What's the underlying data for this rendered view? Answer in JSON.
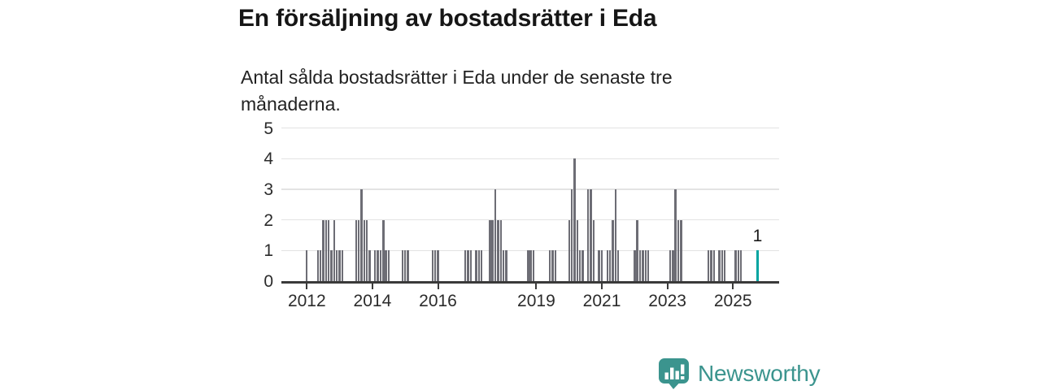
{
  "header": {
    "title": "En försäljning av bostadsrätter i Eda",
    "subtitle": "Antal sålda bostadsrätter i Eda under de senaste tre månaderna."
  },
  "chart_data": {
    "type": "bar",
    "title": "En försäljning av bostadsrätter i Eda",
    "subtitle": "Antal sålda bostadsrätter i Eda under de senaste tre månaderna.",
    "xlabel": "",
    "ylabel": "",
    "ylim": [
      0,
      5
    ],
    "yticks": [
      0,
      1,
      2,
      3,
      4,
      5
    ],
    "xticks": [
      2012,
      2014,
      2016,
      2019,
      2021,
      2023,
      2025
    ],
    "grid": true,
    "x_start": "2012-01",
    "x_end": "2025-10",
    "bar_color": "#6d6d75",
    "highlight_color": "#00a4a0",
    "points": {
      "2012-01": 1,
      "2012-05": 1,
      "2012-06": 1,
      "2012-07": 2,
      "2012-08": 2,
      "2012-09": 2,
      "2012-10": 1,
      "2012-11": 2,
      "2012-12": 1,
      "2013-01": 1,
      "2013-02": 1,
      "2013-07": 2,
      "2013-08": 2,
      "2013-09": 3,
      "2013-10": 2,
      "2013-11": 2,
      "2013-12": 1,
      "2014-02": 1,
      "2014-03": 1,
      "2014-04": 1,
      "2014-05": 2,
      "2014-06": 1,
      "2014-07": 1,
      "2014-12": 1,
      "2015-01": 1,
      "2015-02": 1,
      "2015-11": 1,
      "2015-12": 1,
      "2016-01": 1,
      "2016-11": 1,
      "2016-12": 1,
      "2017-01": 1,
      "2017-03": 1,
      "2017-04": 1,
      "2017-05": 1,
      "2017-08": 2,
      "2017-09": 2,
      "2017-10": 3,
      "2017-11": 2,
      "2017-12": 2,
      "2018-01": 1,
      "2018-02": 1,
      "2018-10": 1,
      "2018-11": 1,
      "2018-12": 1,
      "2019-06": 1,
      "2019-07": 1,
      "2019-08": 1,
      "2020-01": 2,
      "2020-02": 3,
      "2020-03": 4,
      "2020-04": 2,
      "2020-05": 1,
      "2020-06": 1,
      "2020-08": 3,
      "2020-09": 3,
      "2020-10": 2,
      "2020-12": 1,
      "2021-01": 1,
      "2021-03": 1,
      "2021-04": 1,
      "2021-05": 2,
      "2021-06": 3,
      "2021-07": 1,
      "2022-01": 1,
      "2022-02": 2,
      "2022-03": 1,
      "2022-04": 1,
      "2022-05": 1,
      "2022-06": 1,
      "2023-02": 1,
      "2023-03": 1,
      "2023-04": 3,
      "2023-05": 2,
      "2023-06": 2,
      "2024-04": 1,
      "2024-05": 1,
      "2024-06": 1,
      "2024-08": 1,
      "2024-09": 1,
      "2024-10": 1,
      "2025-02": 1,
      "2025-03": 1,
      "2025-04": 1,
      "2025-10": 1
    },
    "highlight": {
      "month": "2025-10",
      "value": 1,
      "label": "1"
    }
  },
  "footer": {
    "brand": "Newsworthy",
    "logo_color": "#3b948e",
    "logo_icon": "bar-chart-speech-bubble-icon"
  }
}
